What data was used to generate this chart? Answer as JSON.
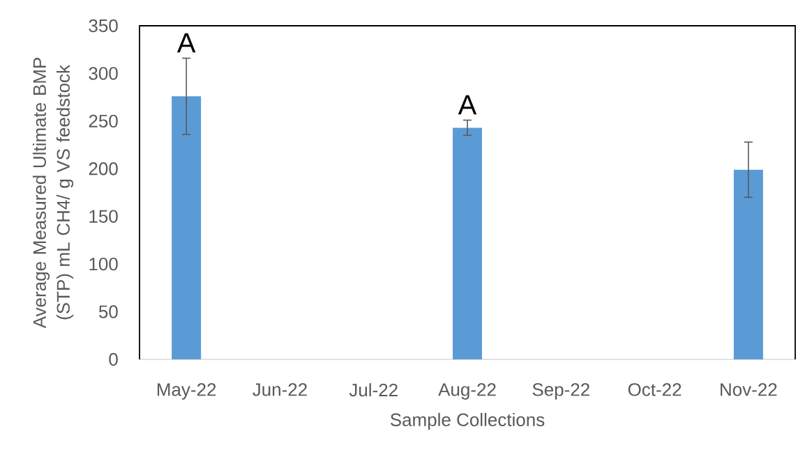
{
  "chart_data": {
    "type": "bar",
    "xlabel": "Sample Collections",
    "ylabel": "Average Measured Ultimate BMP (STP) mL CH4/ g VS feedstock",
    "categories": [
      "May-22",
      "Jun-22",
      "Jul-22",
      "Aug-22",
      "Sep-22",
      "Oct-22",
      "Nov-22"
    ],
    "values": [
      276,
      null,
      null,
      243,
      null,
      null,
      199
    ],
    "errors": [
      40,
      null,
      null,
      8,
      null,
      null,
      29
    ],
    "color": "#5b9bd5",
    "ylim": [
      0,
      350
    ],
    "yticks": [
      0,
      50,
      100,
      150,
      200,
      250,
      300,
      350
    ],
    "annotations": [
      {
        "text": "A",
        "x": "May-22",
        "y": 276
      },
      {
        "text": "A",
        "x": "Aug-22",
        "y": 243
      }
    ]
  }
}
